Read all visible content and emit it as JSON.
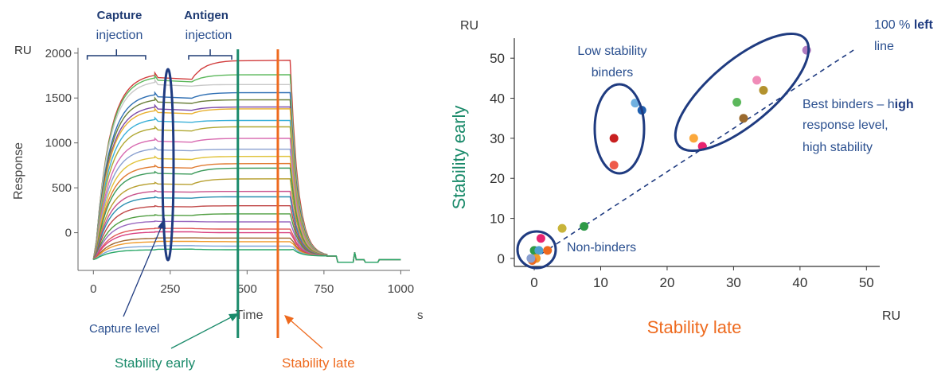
{
  "chart_data": [
    {
      "type": "line",
      "ylabel": "Response",
      "y_unit": "RU",
      "x_unit": "s",
      "xlabel": "Time",
      "xlim": [
        -50,
        1030
      ],
      "ylim": [
        -420,
        2060
      ],
      "x_ticks": [
        "0",
        "250",
        "500",
        "750",
        "1000"
      ],
      "x_tick_values": [
        0,
        250,
        500,
        750,
        1000
      ],
      "y_ticks": [
        "2000",
        "1500",
        "1000",
        "500",
        "0"
      ],
      "y_tick_values": [
        2000,
        1500,
        1000,
        500,
        0
      ],
      "capture_label": {
        "line1": "Capture",
        "line2": "injection"
      },
      "antigen_label": {
        "line1": "Antigen",
        "line2": "injection"
      },
      "capture_injection": [
        -20,
        170
      ],
      "antigen_injection": [
        310,
        450
      ],
      "capture_level_label": "Capture level",
      "stability_early": {
        "label": "Stability early",
        "x": 470,
        "color": "#1a8a6a"
      },
      "stability_late": {
        "label": "Stability late",
        "x": 600,
        "color": "#ee6a1e"
      },
      "sensorgrams": [
        {
          "capture": 1780,
          "final": 1920,
          "color": "#d13b3b"
        },
        {
          "capture": 1750,
          "final": 1760,
          "color": "#5cb85c"
        },
        {
          "capture": 1700,
          "final": 1650,
          "color": "#c8c8c8"
        },
        {
          "capture": 1560,
          "final": 1560,
          "color": "#2f6fb3"
        },
        {
          "capture": 1500,
          "final": 1480,
          "color": "#6a7f3a"
        },
        {
          "capture": 1420,
          "final": 1400,
          "color": "#7b4aa8"
        },
        {
          "capture": 1380,
          "final": 1380,
          "color": "#e8b030"
        },
        {
          "capture": 1280,
          "final": 1250,
          "color": "#3bb0d8"
        },
        {
          "capture": 1180,
          "final": 1180,
          "color": "#b0a832"
        },
        {
          "capture": 1050,
          "final": 1050,
          "color": "#d86ab0"
        },
        {
          "capture": 950,
          "final": 930,
          "color": "#8aa0d0"
        },
        {
          "capture": 850,
          "final": 850,
          "color": "#e0c23a"
        },
        {
          "capture": 750,
          "final": 770,
          "color": "#e07a30"
        },
        {
          "capture": 680,
          "final": 720,
          "color": "#3c9a5a"
        },
        {
          "capture": 560,
          "final": 600,
          "color": "#b8a030"
        },
        {
          "capture": 470,
          "final": 460,
          "color": "#c8508a"
        },
        {
          "capture": 400,
          "final": 400,
          "color": "#2b8fb0"
        },
        {
          "capture": 300,
          "final": 300,
          "color": "#c04848"
        },
        {
          "capture": 200,
          "final": 210,
          "color": "#4f9d40"
        },
        {
          "capture": 130,
          "final": 120,
          "color": "#9a6ac0"
        },
        {
          "capture": 50,
          "final": 40,
          "color": "#e05858"
        },
        {
          "capture": 10,
          "final": 0,
          "color": "#d84080"
        },
        {
          "capture": -60,
          "final": -60,
          "color": "#a06830"
        },
        {
          "capture": -100,
          "final": -100,
          "color": "#f09a2a"
        },
        {
          "capture": -150,
          "final": -150,
          "color": "#7fa6d8"
        },
        {
          "capture": -190,
          "final": -190,
          "color": "#2aa868"
        }
      ]
    },
    {
      "type": "scatter",
      "xlabel": "Stability late",
      "ylabel": "Stability early",
      "x_unit": "RU",
      "y_unit": "RU",
      "xlim": [
        -3,
        52
      ],
      "ylim": [
        -2,
        55
      ],
      "x_ticks": [
        "0",
        "10",
        "20",
        "30",
        "40",
        "50"
      ],
      "x_tick_values": [
        0,
        10,
        20,
        30,
        40,
        50
      ],
      "y_ticks": [
        "50",
        "40",
        "30",
        "20",
        "10",
        "0"
      ],
      "y_tick_values": [
        50,
        40,
        30,
        20,
        10,
        0
      ],
      "reference_line": {
        "label_pre": "100 % ",
        "label_bold": "left",
        "label_post": "line",
        "from": [
          0,
          0
        ],
        "to": [
          48.5,
          52.5
        ]
      },
      "annotations": {
        "low_stability": {
          "line1": "Low stability",
          "line2": "binders"
        },
        "best": {
          "line1_pre": "Best binders – h",
          "line1_bold": "igh",
          "line2": "response level,",
          "line3": "high stability"
        },
        "non_binders": "Non-binders"
      },
      "points": [
        {
          "x": 41,
          "y": 52,
          "color": "#b07cc0"
        },
        {
          "x": 33.5,
          "y": 44.5,
          "color": "#f08cb8"
        },
        {
          "x": 34.5,
          "y": 42,
          "color": "#b3922e"
        },
        {
          "x": 30.5,
          "y": 39,
          "color": "#5cb85c"
        },
        {
          "x": 31.5,
          "y": 35,
          "color": "#9a6a2e"
        },
        {
          "x": 24,
          "y": 30,
          "color": "#fba83c"
        },
        {
          "x": 25.3,
          "y": 28,
          "color": "#e8236f"
        },
        {
          "x": 15.2,
          "y": 38.8,
          "color": "#6fb0e0"
        },
        {
          "x": 16.2,
          "y": 37,
          "color": "#1f5fb0"
        },
        {
          "x": 12,
          "y": 30,
          "color": "#c82020"
        },
        {
          "x": 12,
          "y": 23.3,
          "color": "#ee5a4a"
        },
        {
          "x": 7.5,
          "y": 8,
          "color": "#2e9a48"
        },
        {
          "x": 4.2,
          "y": 7.5,
          "color": "#c8b43a"
        },
        {
          "x": 1,
          "y": 5,
          "color": "#e8236f"
        },
        {
          "x": 0,
          "y": 2,
          "color": "#2e9a48"
        },
        {
          "x": 0.7,
          "y": 2,
          "color": "#4fa0d0"
        },
        {
          "x": 2,
          "y": 2,
          "color": "#ee6a1e"
        },
        {
          "x": 0.3,
          "y": 0,
          "color": "#f09a2a"
        },
        {
          "x": -0.3,
          "y": -0.5,
          "color": "#ee6a1e"
        },
        {
          "x": -0.5,
          "y": 0,
          "color": "#8aa0d0"
        }
      ]
    }
  ]
}
